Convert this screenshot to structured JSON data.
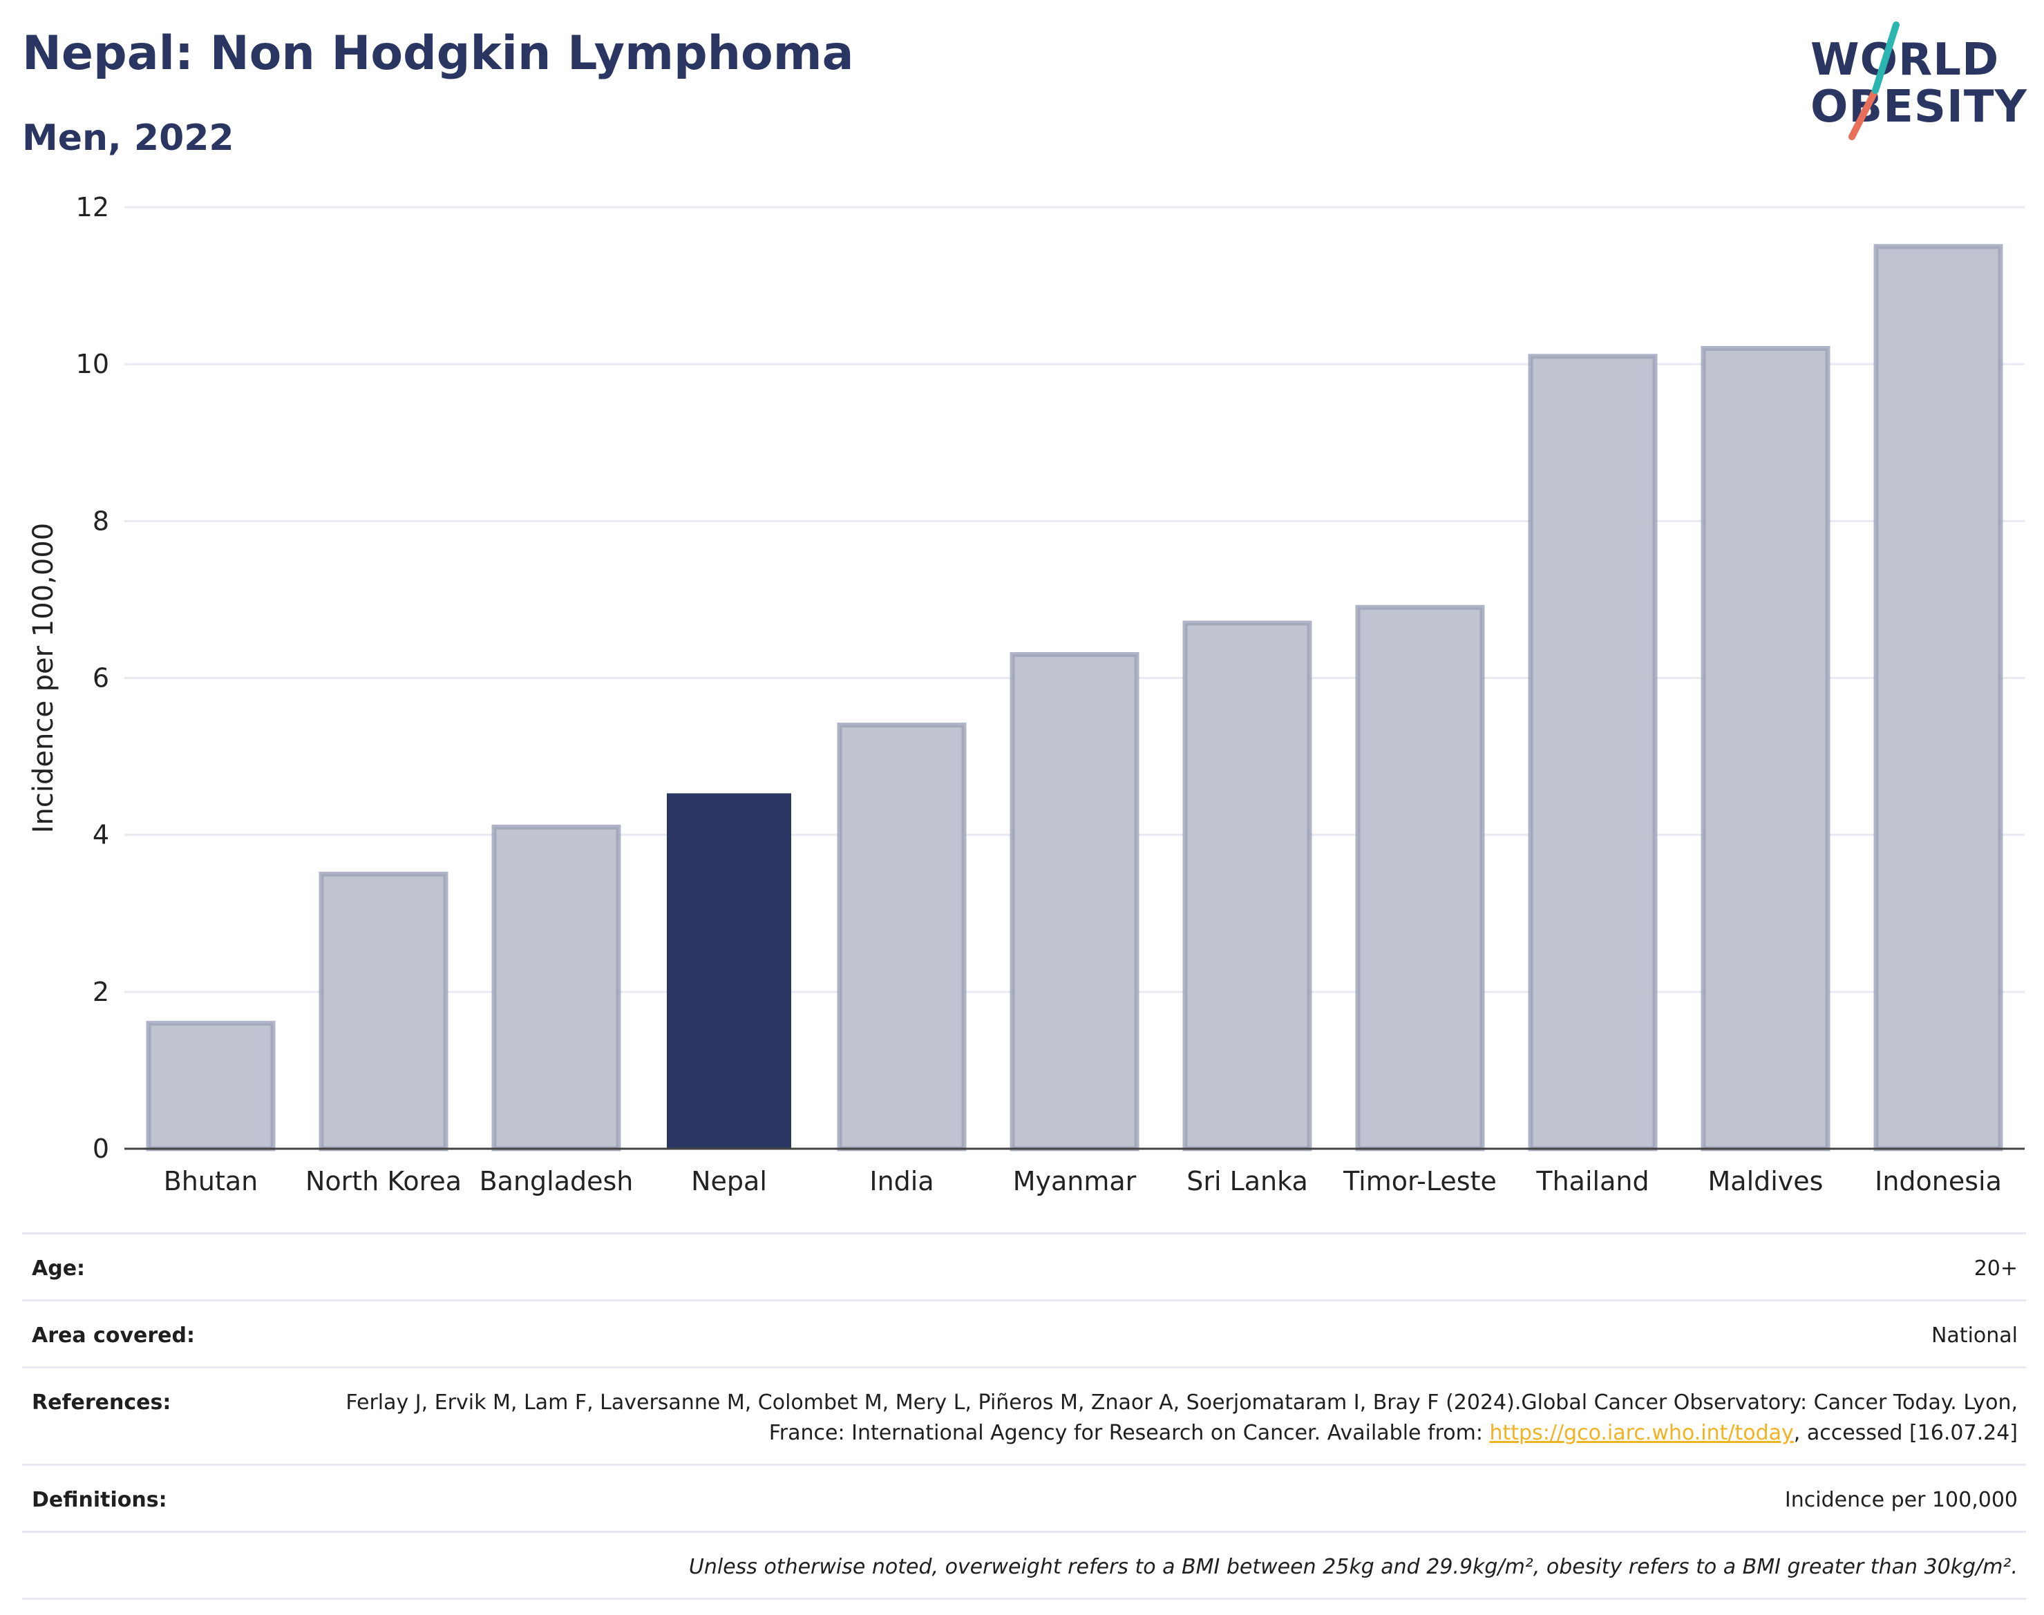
{
  "header": {
    "title": "Nepal: Non Hodgkin Lymphoma",
    "subtitle": "Men, 2022"
  },
  "logo": {
    "line1": "WORLD",
    "line2": "OBESITY",
    "colors": {
      "text": "#2b3562",
      "slash_teal": "#2bb5b0",
      "slash_coral": "#e8705a"
    }
  },
  "chart_data": {
    "type": "bar",
    "categories": [
      "Bhutan",
      "North Korea",
      "Bangladesh",
      "Nepal",
      "India",
      "Myanmar",
      "Sri Lanka",
      "Timor-Leste",
      "Thailand",
      "Maldives",
      "Indonesia"
    ],
    "values": [
      1.6,
      3.5,
      4.1,
      4.53,
      5.4,
      6.3,
      6.7,
      6.9,
      10.1,
      10.2,
      11.5
    ],
    "highlight": "Nepal",
    "ylabel": "Incidence per 100,000",
    "yticks": [
      "0",
      "2",
      "4",
      "6",
      "8",
      "10",
      "12"
    ],
    "ylim": [
      0,
      12
    ],
    "grid": true,
    "colors": {
      "highlight": "#2b3562",
      "bar": "#c0c3d0",
      "bar_border": "#9ba1b8",
      "grid": "#e8eaf1",
      "axis": "#444444"
    }
  },
  "meta": {
    "age_label": "Age:",
    "age_value": "20+",
    "area_label": "Area covered:",
    "area_value": "National",
    "references_label": "References:",
    "references_text_1": "Ferlay J, Ervik M, Lam F, Laversanne M, Colombet M, Mery L, Piñeros M, Znaor A, Soerjomataram I, Bray F (2024).Global Cancer Observatory: Cancer Today. Lyon, France: International Agency for Research on Cancer. Available from: ",
    "references_link": "https://gco.iarc.who.int/today",
    "references_text_2": ", accessed [16.07.24]",
    "definitions_label": "Definitions:",
    "definitions_value": "Incidence per 100,000",
    "note": "Unless otherwise noted, overweight refers to a BMI between 25kg and 29.9kg/m², obesity refers to a BMI greater than 30kg/m²."
  }
}
